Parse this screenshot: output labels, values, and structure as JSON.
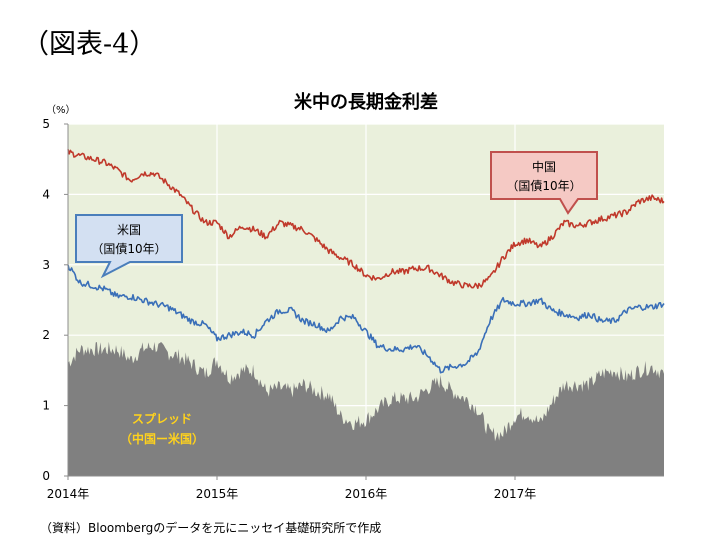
{
  "figure_label": "（図表-4）",
  "source_note": "（資料）Bloombergのデータを元にニッセイ基礎研究所で作成",
  "colors": {
    "plot_bg": "#eaf0dc",
    "china": "#c0392b",
    "us": "#3a6fb8",
    "spread": "#808080",
    "spread_label": "#ffd21c"
  },
  "chart_data": {
    "type": "line",
    "title": "米中の長期金利差",
    "ylabel": "（%）",
    "ylim": [
      0,
      5
    ],
    "yticks": [
      "0",
      "1",
      "2",
      "3",
      "4",
      "5"
    ],
    "xlim": [
      2014.0,
      2018.0
    ],
    "xticks": [
      {
        "x": 2014.0,
        "label": "2014年"
      },
      {
        "x": 2015.0,
        "label": "2015年"
      },
      {
        "x": 2016.0,
        "label": "2016年"
      },
      {
        "x": 2017.0,
        "label": "2017年"
      }
    ],
    "x": [
      2014.0,
      2014.08,
      2014.17,
      2014.25,
      2014.33,
      2014.42,
      2014.5,
      2014.58,
      2014.67,
      2014.75,
      2014.83,
      2014.92,
      2015.0,
      2015.08,
      2015.17,
      2015.25,
      2015.33,
      2015.42,
      2015.5,
      2015.58,
      2015.67,
      2015.75,
      2015.83,
      2015.92,
      2016.0,
      2016.08,
      2016.17,
      2016.25,
      2016.33,
      2016.42,
      2016.5,
      2016.58,
      2016.67,
      2016.75,
      2016.83,
      2016.92,
      2017.0,
      2017.08,
      2017.17,
      2017.25,
      2017.33,
      2017.42,
      2017.5,
      2017.58,
      2017.67,
      2017.75,
      2017.83,
      2017.92,
      2018.0
    ],
    "series": [
      {
        "name": "中国（国債10年）",
        "values": [
          4.6,
          4.55,
          4.5,
          4.45,
          4.35,
          4.2,
          4.3,
          4.3,
          4.15,
          4.0,
          3.8,
          3.6,
          3.6,
          3.4,
          3.55,
          3.5,
          3.4,
          3.6,
          3.55,
          3.5,
          3.35,
          3.2,
          3.1,
          3.0,
          2.85,
          2.8,
          2.9,
          2.9,
          2.95,
          2.95,
          2.85,
          2.75,
          2.7,
          2.7,
          2.8,
          3.1,
          3.3,
          3.35,
          3.25,
          3.4,
          3.6,
          3.55,
          3.6,
          3.65,
          3.7,
          3.75,
          3.9,
          3.95,
          3.9
        ]
      },
      {
        "name": "米国（国債10年）",
        "values": [
          3.0,
          2.75,
          2.7,
          2.65,
          2.55,
          2.55,
          2.5,
          2.45,
          2.4,
          2.3,
          2.2,
          2.15,
          1.95,
          2.0,
          2.05,
          2.0,
          2.2,
          2.35,
          2.35,
          2.2,
          2.15,
          2.05,
          2.25,
          2.25,
          2.05,
          1.85,
          1.8,
          1.8,
          1.85,
          1.7,
          1.5,
          1.55,
          1.6,
          1.75,
          2.2,
          2.5,
          2.45,
          2.45,
          2.5,
          2.35,
          2.3,
          2.25,
          2.3,
          2.2,
          2.2,
          2.35,
          2.4,
          2.4,
          2.45
        ]
      }
    ],
    "spread_series": {
      "name": "スプレッド（中国ー米国）",
      "label_lines": [
        "スプレッド",
        "（中国ー米国）"
      ],
      "values": [
        1.6,
        1.8,
        1.8,
        1.8,
        1.8,
        1.65,
        1.8,
        1.85,
        1.75,
        1.7,
        1.6,
        1.45,
        1.65,
        1.4,
        1.5,
        1.5,
        1.2,
        1.25,
        1.2,
        1.3,
        1.2,
        1.15,
        0.85,
        0.75,
        0.8,
        0.95,
        1.1,
        1.1,
        1.1,
        1.25,
        1.35,
        1.2,
        1.1,
        0.95,
        0.6,
        0.6,
        0.85,
        0.9,
        0.75,
        1.05,
        1.3,
        1.3,
        1.3,
        1.45,
        1.5,
        1.4,
        1.5,
        1.55,
        1.45
      ]
    },
    "callouts": [
      {
        "lines": [
          "中国",
          "（国債10年）"
        ]
      },
      {
        "lines": [
          "米国",
          "（国債10年）"
        ]
      }
    ]
  }
}
